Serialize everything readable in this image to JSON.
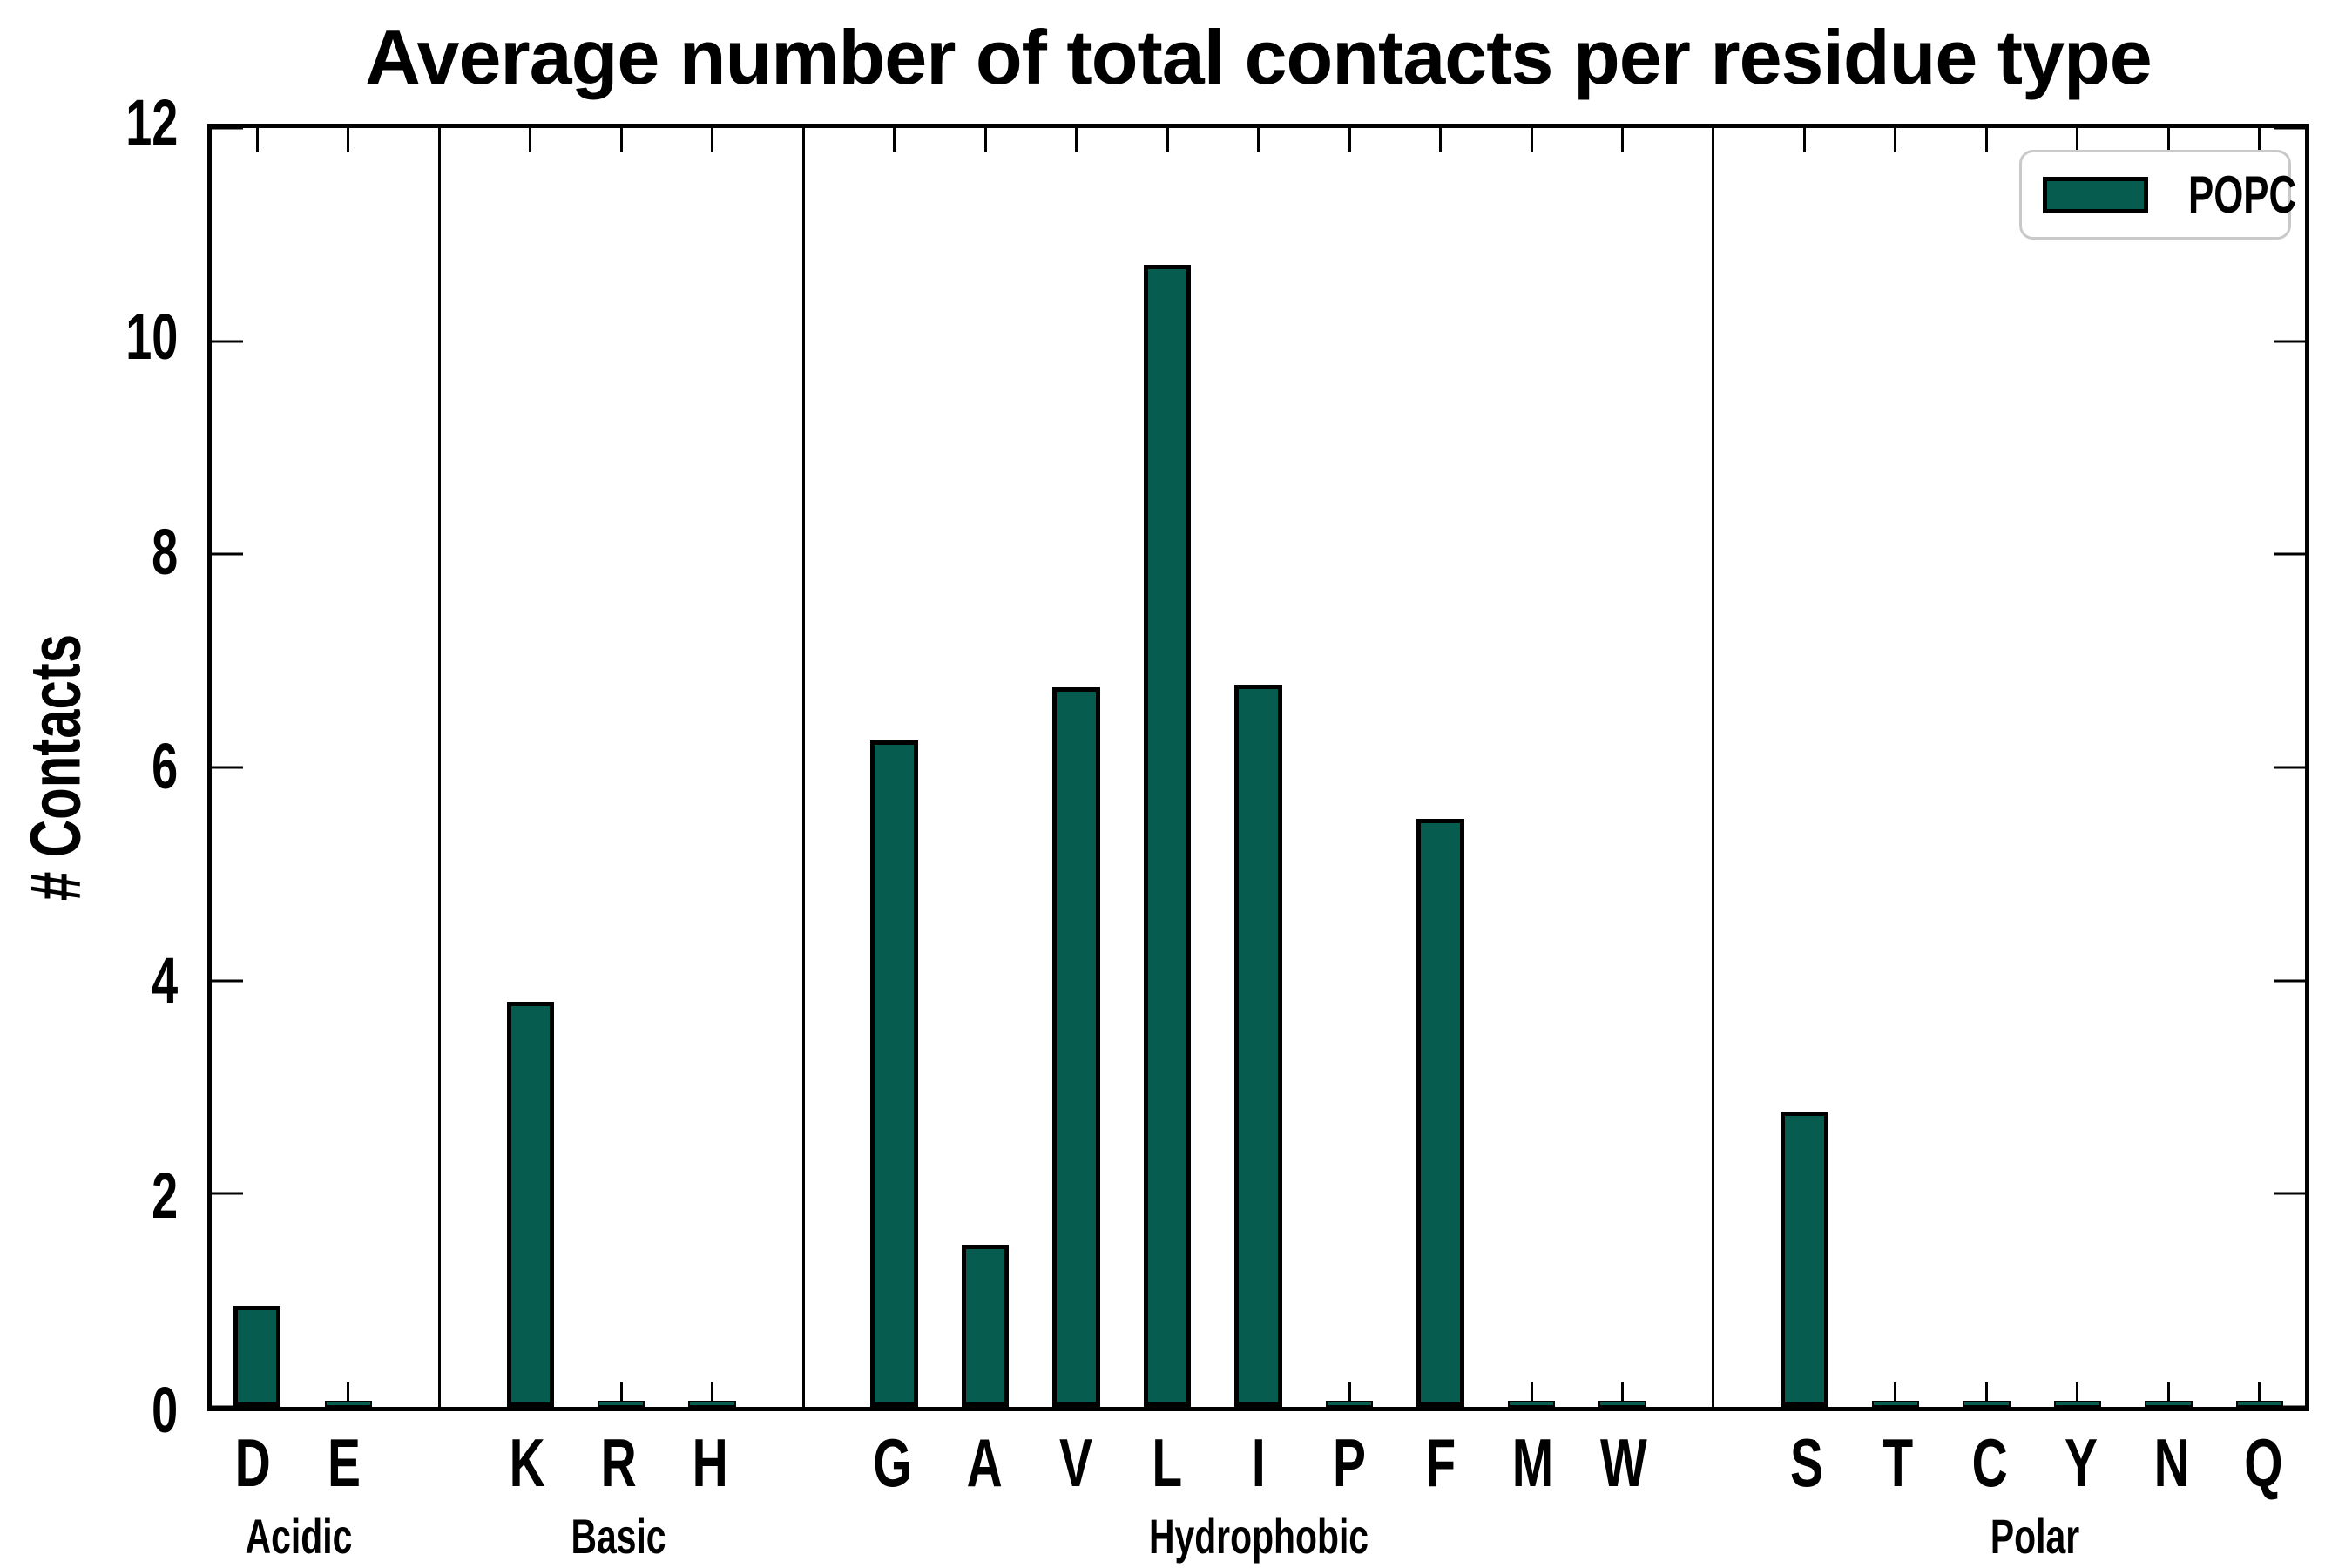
{
  "chart_data": {
    "type": "bar",
    "title": "Average number of total contacts per residue type",
    "ylabel": "# Contacts",
    "ylim": [
      0,
      12
    ],
    "yticks": [
      0,
      2,
      4,
      6,
      8,
      10,
      12
    ],
    "grid": false,
    "legend": {
      "label": "POPC",
      "position": "top-right"
    },
    "bar_color": "#075c50",
    "bar_edge_color": "#000000",
    "separator_between_groups": true,
    "groups": [
      {
        "name": "Acidic",
        "categories": [
          "D",
          "E"
        ],
        "values": [
          0.95,
          0.02
        ]
      },
      {
        "name": "Basic",
        "categories": [
          "K",
          "R",
          "H"
        ],
        "values": [
          3.8,
          0.02,
          0.02
        ]
      },
      {
        "name": "Hydrophobic",
        "categories": [
          "G",
          "A",
          "V",
          "L",
          "I",
          "P",
          "F",
          "M",
          "W"
        ],
        "values": [
          6.25,
          1.52,
          6.75,
          10.72,
          6.78,
          0.02,
          5.52,
          0.02,
          0.02
        ]
      },
      {
        "name": "Polar",
        "categories": [
          "S",
          "T",
          "C",
          "Y",
          "N",
          "Q"
        ],
        "values": [
          2.77,
          0.02,
          0.02,
          0.02,
          0.02,
          0.02
        ]
      }
    ]
  }
}
